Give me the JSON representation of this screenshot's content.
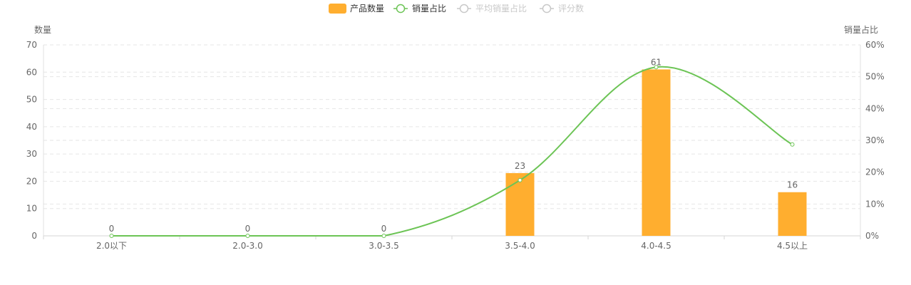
{
  "colors": {
    "bar": "#ffae2f",
    "line": "#6cc455",
    "legend_inactive": "#c8c8c8",
    "axis_text": "#666666"
  },
  "chart_data": {
    "type": "bar",
    "categories": [
      "2.0以下",
      "2.0-3.0",
      "3.0-3.5",
      "3.5-4.0",
      "4.0-4.5",
      "4.5以上"
    ],
    "y_left": {
      "label": "数量",
      "ylim": [
        0,
        70
      ],
      "ticks": [
        "0",
        "10",
        "20",
        "30",
        "40",
        "50",
        "60",
        "70"
      ]
    },
    "y_right": {
      "label": "销量占比",
      "ylim": [
        0,
        60
      ],
      "ticks": [
        "0%",
        "10%",
        "20%",
        "30%",
        "40%",
        "50%",
        "60%"
      ]
    },
    "grid": true,
    "legend_position": "top-center",
    "legend": [
      {
        "name": "产品数量",
        "type": "bar",
        "active": true
      },
      {
        "name": "销量占比",
        "type": "line",
        "active": true
      },
      {
        "name": "平均销量占比",
        "type": "line",
        "active": false
      },
      {
        "name": "评分数",
        "type": "line",
        "active": false
      }
    ],
    "series": [
      {
        "name": "产品数量",
        "type": "bar",
        "axis": "left",
        "values": [
          0,
          0,
          0,
          23,
          61,
          16
        ],
        "labels": [
          "0",
          "0",
          "0",
          "23",
          "61",
          "16"
        ]
      },
      {
        "name": "销量占比",
        "type": "line",
        "axis": "right",
        "values": [
          0,
          0,
          0,
          17.5,
          53,
          28.7
        ]
      }
    ]
  }
}
